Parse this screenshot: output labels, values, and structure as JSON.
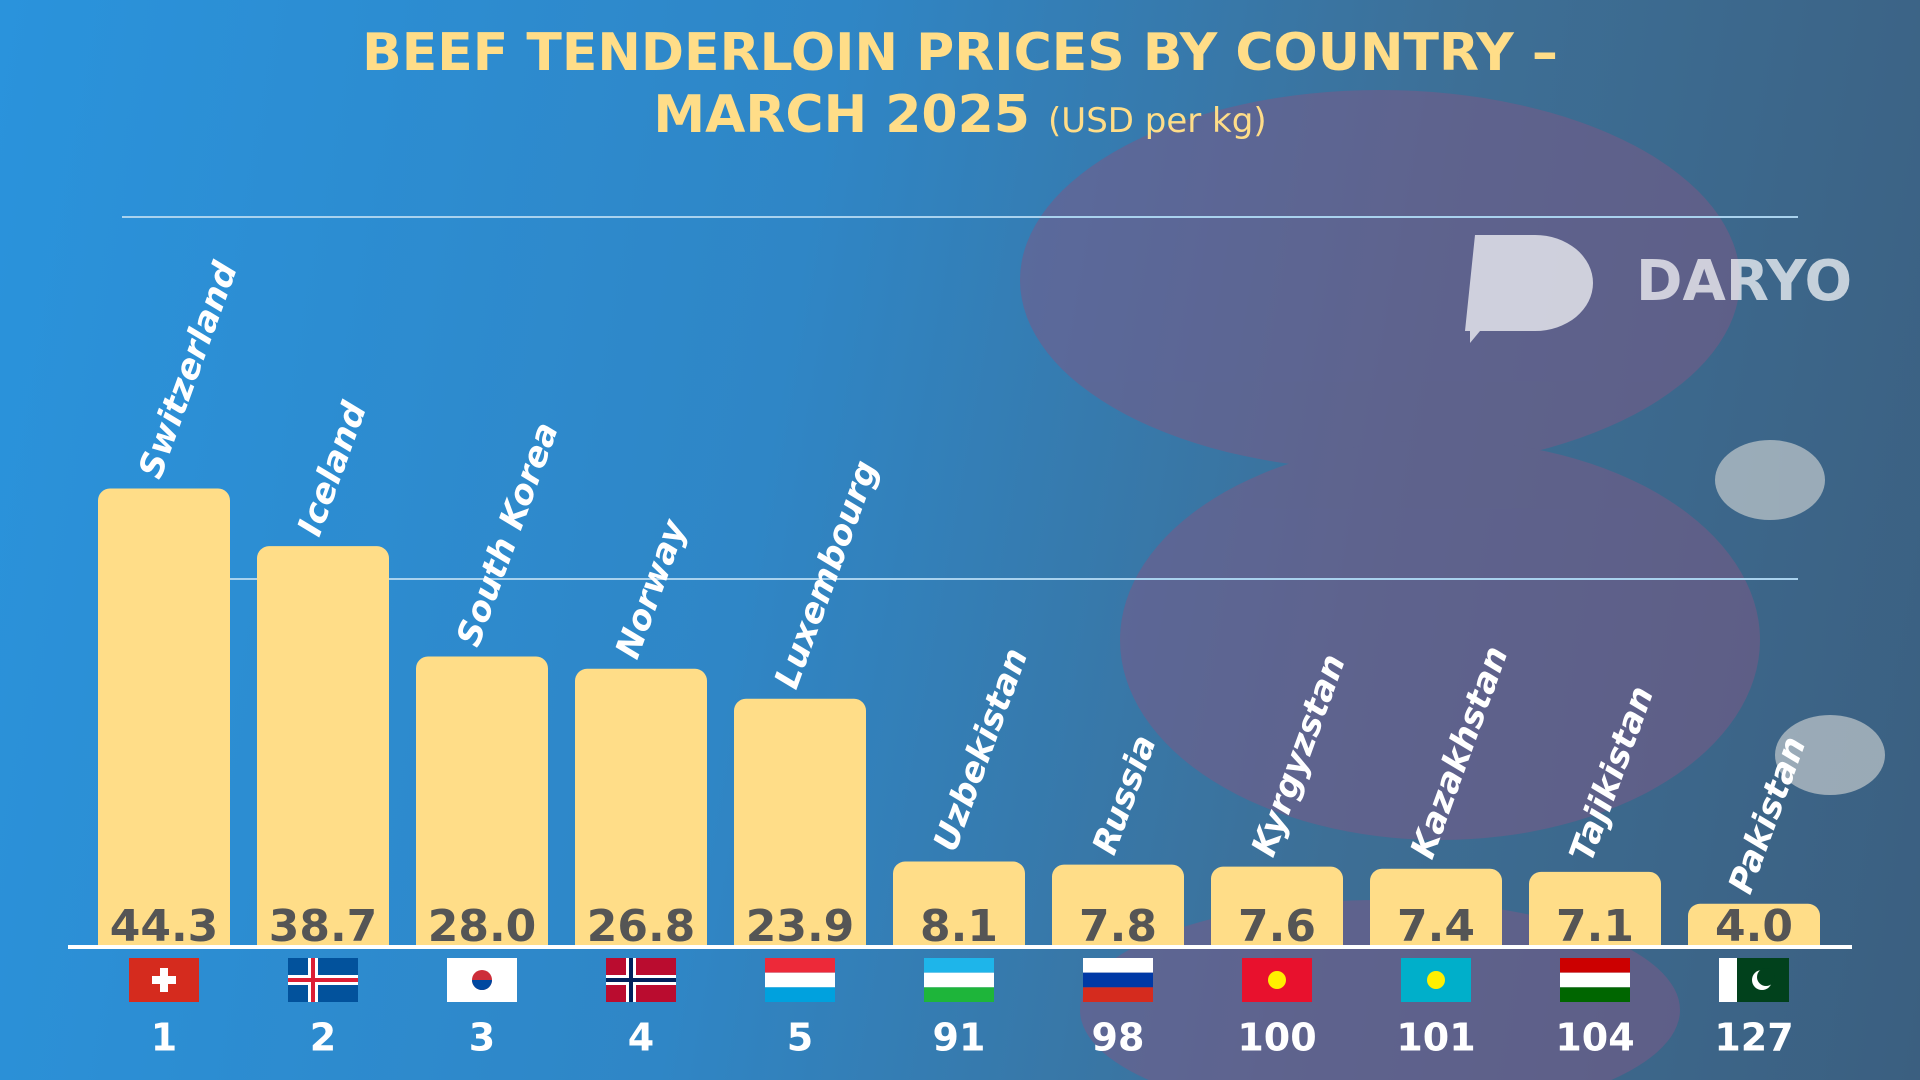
{
  "chart_data": {
    "type": "bar",
    "title": "BEEF TENDERLOIN PRICES BY COUNTRY – MARCH 2025",
    "subtitle": "(USD per kg)",
    "categories": [
      "Switzerland",
      "Iceland",
      "South Korea",
      "Norway",
      "Luxembourg",
      "Uzbekistan",
      "Russia",
      "Kyrgyzstan",
      "Kazakhstan",
      "Tajikistan",
      "Pakistan"
    ],
    "values": [
      44.3,
      38.7,
      28.0,
      26.8,
      23.9,
      8.1,
      7.8,
      7.6,
      7.4,
      7.1,
      4.0
    ],
    "value_labels": [
      "44.3",
      "38.7",
      "28.0",
      "26.8",
      "23.9",
      "8.1",
      "7.8",
      "7.6",
      "7.4",
      "7.1",
      "4.0"
    ],
    "ranks": [
      1,
      2,
      3,
      4,
      5,
      91,
      98,
      100,
      101,
      104,
      127
    ],
    "color": "#ffdd88",
    "ylim": [
      0,
      72
    ]
  },
  "brand": "DARYO"
}
